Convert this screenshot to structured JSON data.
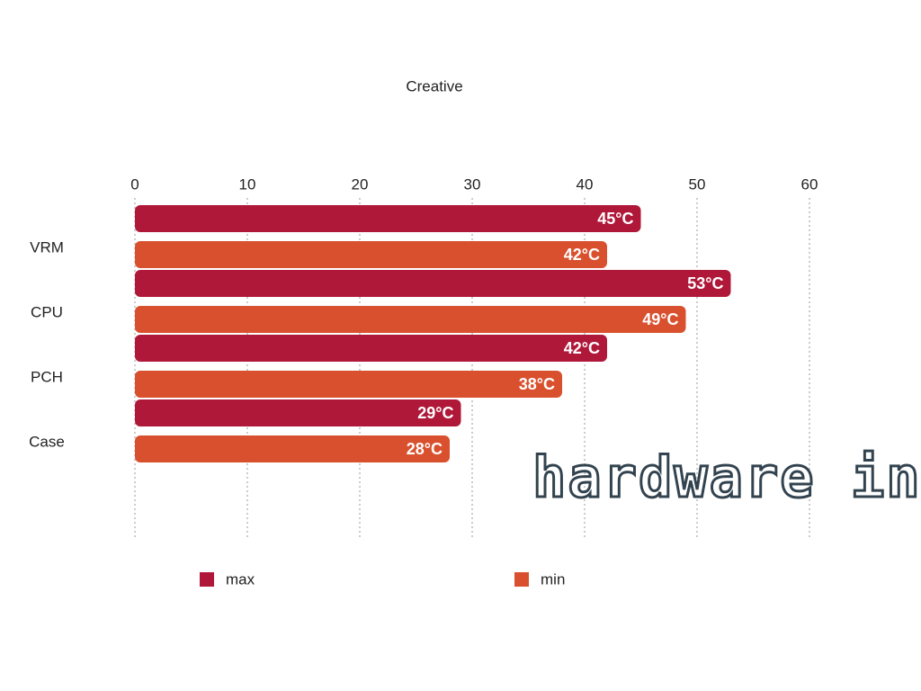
{
  "chart_data": {
    "type": "bar",
    "orientation": "horizontal",
    "title": "Creative",
    "categories": [
      "VRM",
      "CPU",
      "PCH",
      "Case"
    ],
    "series": [
      {
        "name": "max",
        "color": "#b0183a",
        "values": [
          45,
          53,
          42,
          29
        ],
        "value_labels": [
          "45°C",
          "53°C",
          "42°C",
          "29°C"
        ]
      },
      {
        "name": "min",
        "color": "#d9502e",
        "values": [
          42,
          49,
          38,
          28
        ],
        "value_labels": [
          "42°C",
          "49°C",
          "38°C",
          "28°C"
        ]
      }
    ],
    "xlim": [
      0,
      60
    ],
    "xticks": [
      0,
      10,
      20,
      30,
      40,
      50,
      60
    ],
    "grid": true,
    "watermark": "hardware inside"
  }
}
